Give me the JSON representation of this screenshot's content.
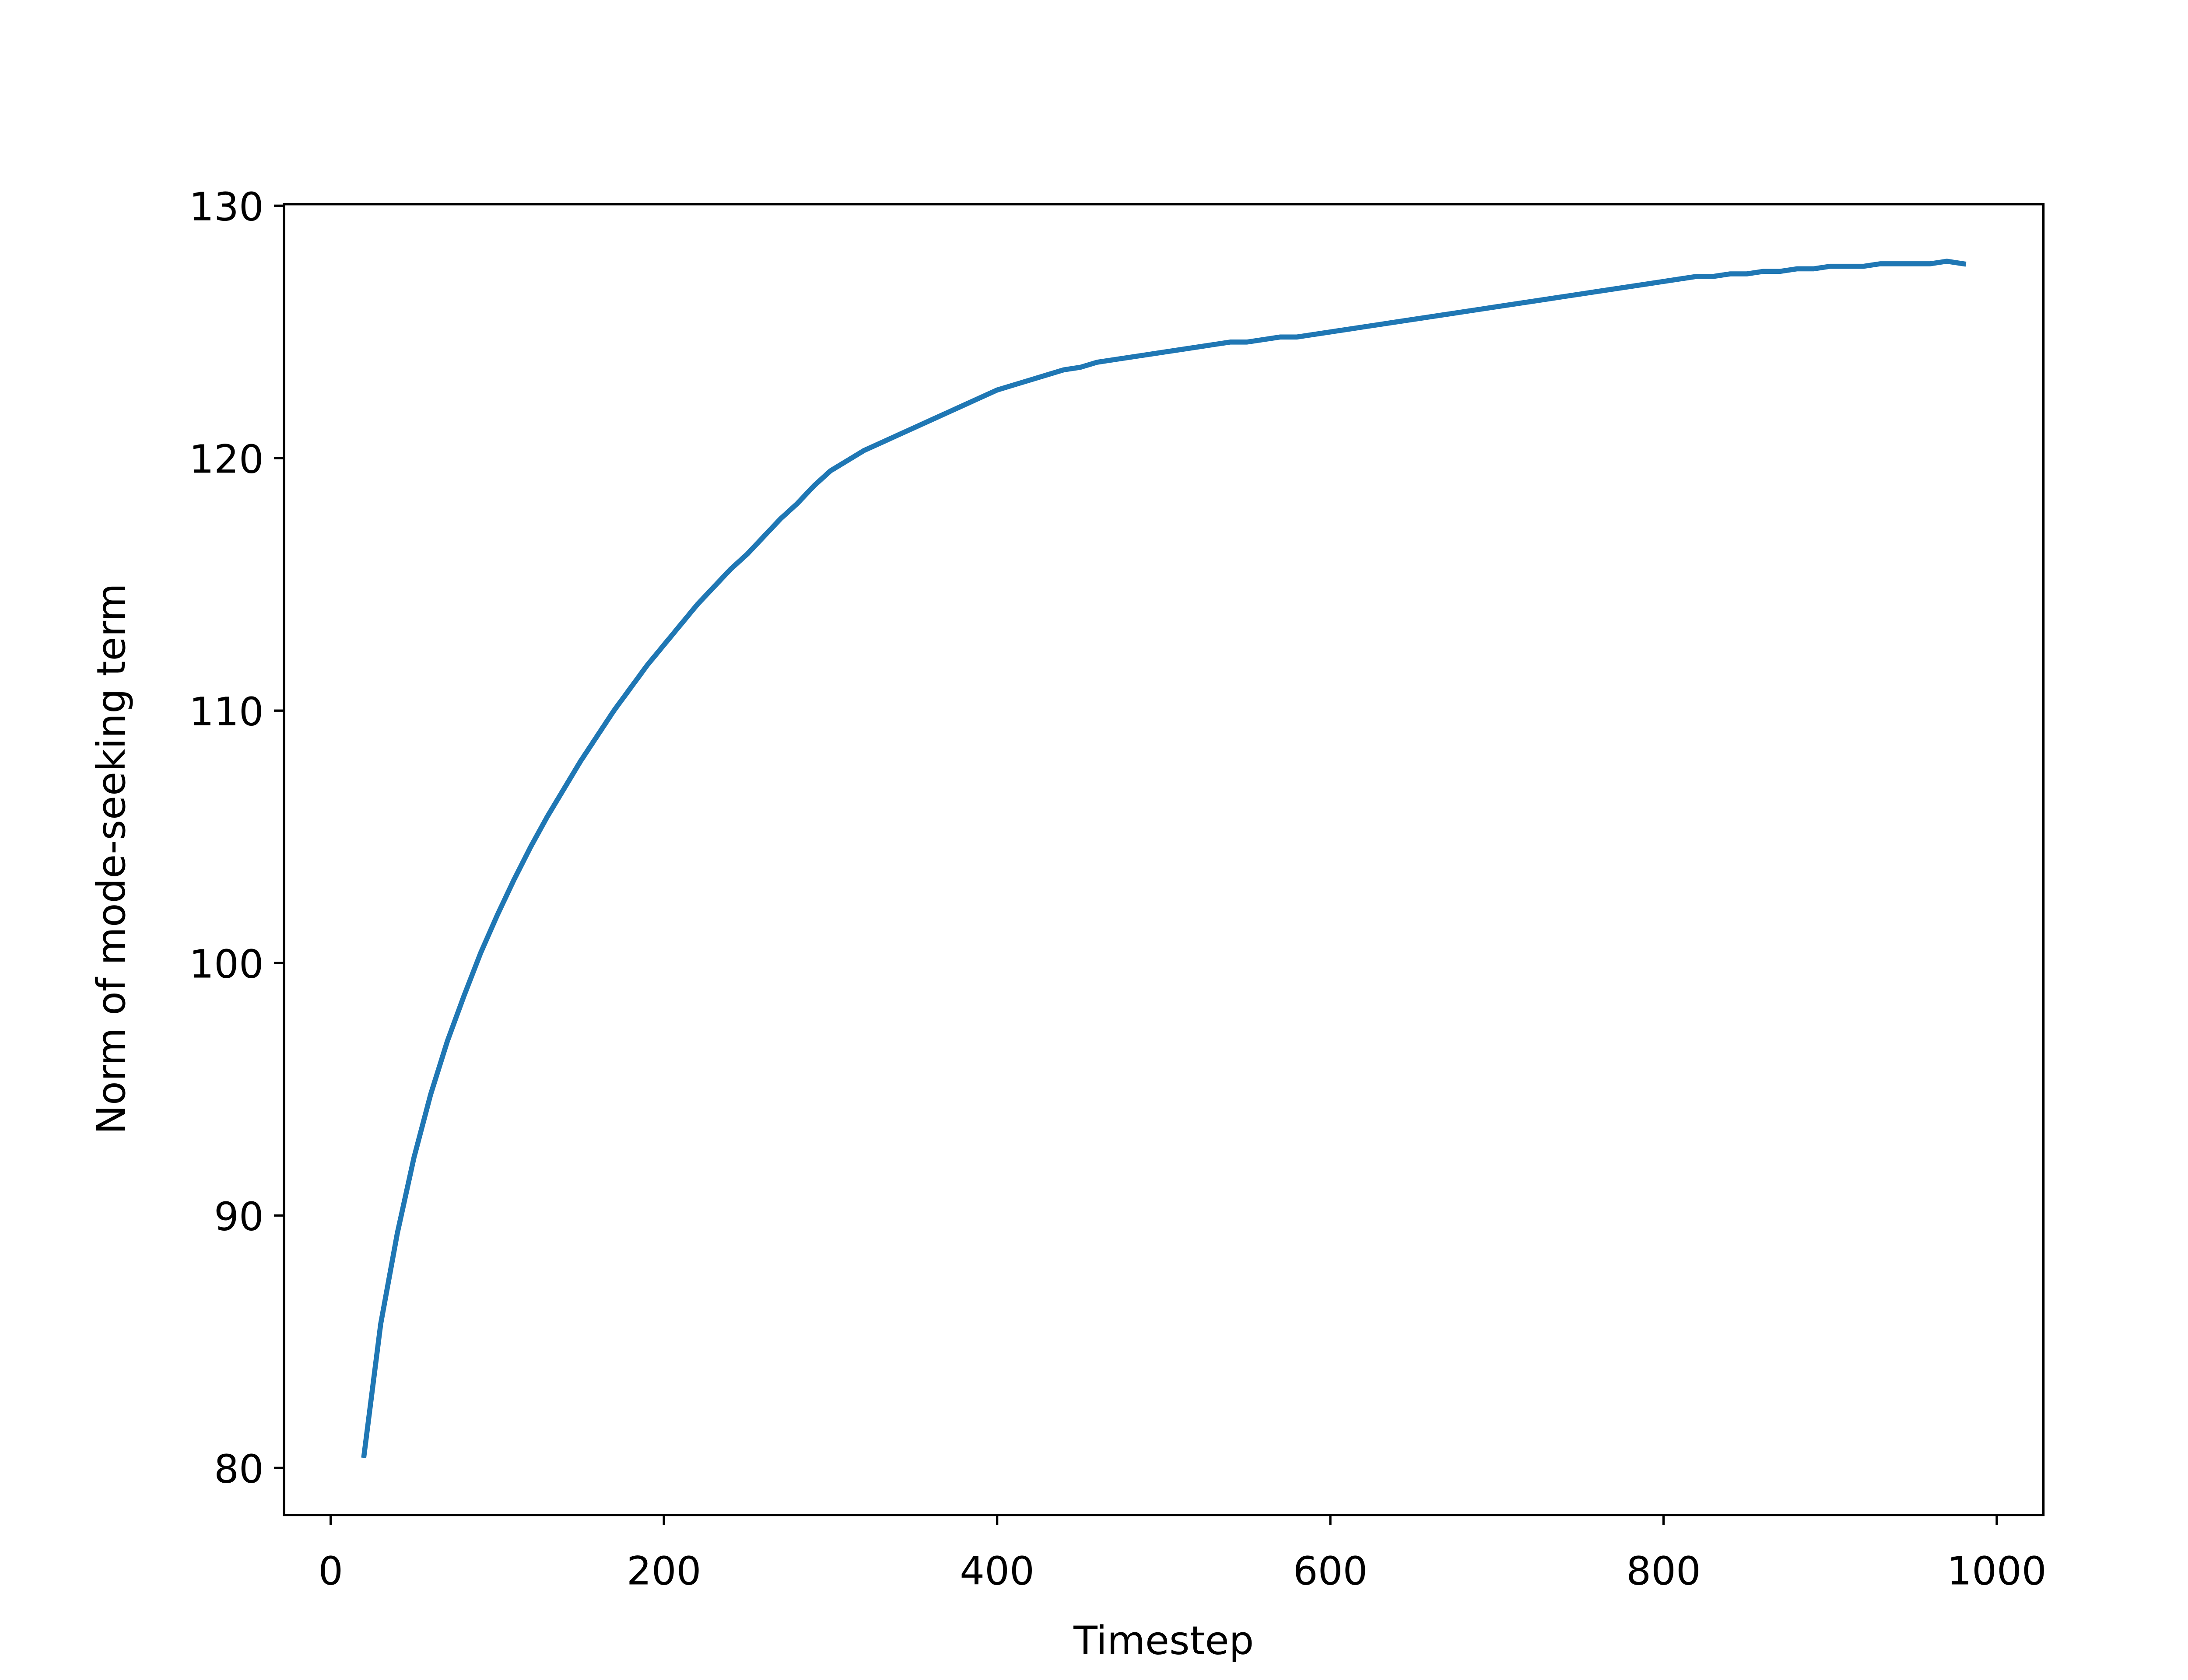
{
  "chart_data": {
    "type": "line",
    "xlabel": "Timestep",
    "ylabel": "Norm of mode-seeking term",
    "x": [
      20,
      30,
      40,
      50,
      60,
      70,
      80,
      90,
      100,
      110,
      120,
      130,
      140,
      150,
      160,
      170,
      180,
      190,
      200,
      210,
      220,
      230,
      240,
      250,
      260,
      270,
      280,
      290,
      300,
      310,
      320,
      330,
      340,
      350,
      360,
      370,
      380,
      390,
      400,
      410,
      420,
      430,
      440,
      450,
      460,
      470,
      480,
      490,
      500,
      510,
      520,
      530,
      540,
      550,
      560,
      570,
      580,
      590,
      600,
      610,
      620,
      630,
      640,
      650,
      660,
      670,
      680,
      690,
      700,
      710,
      720,
      730,
      740,
      750,
      760,
      770,
      780,
      790,
      800,
      810,
      820,
      830,
      840,
      850,
      860,
      870,
      880,
      890,
      900,
      910,
      920,
      930,
      940,
      950,
      960,
      970,
      980
    ],
    "series": [
      {
        "color": "#1f77b4",
        "values": [
          80.5,
          85.7,
          89.3,
          92.3,
          94.8,
          96.9,
          98.7,
          100.4,
          101.9,
          103.3,
          104.6,
          105.8,
          106.9,
          108.0,
          109.0,
          110.0,
          110.9,
          111.8,
          112.6,
          113.4,
          114.2,
          114.9,
          115.6,
          116.2,
          116.9,
          117.6,
          118.2,
          118.9,
          119.5,
          119.9,
          120.3,
          120.6,
          120.9,
          121.2,
          121.5,
          121.8,
          122.1,
          122.4,
          122.7,
          122.9,
          123.1,
          123.3,
          123.5,
          123.6,
          123.8,
          123.9,
          124.0,
          124.1,
          124.2,
          124.3,
          124.4,
          124.5,
          124.6,
          124.6,
          124.7,
          124.8,
          124.8,
          124.9,
          125.0,
          125.1,
          125.2,
          125.3,
          125.4,
          125.5,
          125.6,
          125.7,
          125.8,
          125.9,
          126.0,
          126.1,
          126.2,
          126.3,
          126.4,
          126.5,
          126.6,
          126.7,
          126.8,
          126.9,
          127.0,
          127.1,
          127.2,
          127.2,
          127.3,
          127.3,
          127.4,
          127.4,
          127.5,
          127.5,
          127.6,
          127.6,
          127.6,
          127.7,
          127.7,
          127.7,
          127.7,
          127.8,
          127.7
        ]
      }
    ],
    "xlim": [
      -28,
      1028
    ],
    "ylim": [
      78.14,
      130.06
    ],
    "xticks": [
      0,
      200,
      400,
      600,
      800,
      1000
    ],
    "yticks": [
      80,
      90,
      100,
      110,
      120,
      130
    ]
  }
}
